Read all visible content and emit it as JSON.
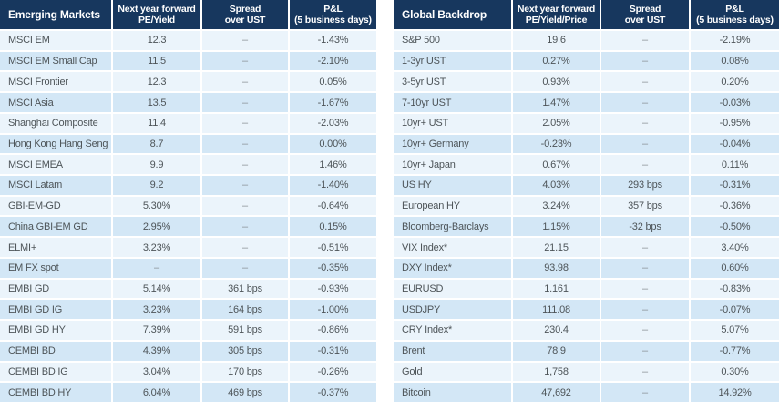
{
  "colors": {
    "header_bg": "#17375E",
    "header_text": "#FFFFFF",
    "row_light": "#EBF4FB",
    "row_dark": "#D3E7F6",
    "text": "#4D5458",
    "dash": "#8A9096"
  },
  "left_table": {
    "title": "Emerging Markets",
    "col_pe_yield": "Next year forward\nPE/Yield",
    "col_spread": "Spread\nover UST",
    "col_pnl": "P&L\n(5 business days)",
    "rows": [
      [
        "MSCI EM",
        "12.3",
        "–",
        "-1.43%"
      ],
      [
        "MSCI EM Small Cap",
        "11.5",
        "–",
        "-2.10%"
      ],
      [
        "MSCI Frontier",
        "12.3",
        "–",
        "0.05%"
      ],
      [
        "MSCI Asia",
        "13.5",
        "–",
        "-1.67%"
      ],
      [
        "Shanghai Composite",
        "11.4",
        "–",
        "-2.03%"
      ],
      [
        "Hong Kong Hang Seng",
        "8.7",
        "–",
        "0.00%"
      ],
      [
        "MSCI EMEA",
        "9.9",
        "–",
        "1.46%"
      ],
      [
        "MSCI Latam",
        "9.2",
        "–",
        "-1.40%"
      ],
      [
        "GBI-EM-GD",
        "5.30%",
        "–",
        "-0.64%"
      ],
      [
        "China GBI-EM GD",
        "2.95%",
        "–",
        "0.15%"
      ],
      [
        "ELMI+",
        "3.23%",
        "–",
        "-0.51%"
      ],
      [
        "EM FX spot",
        "–",
        "–",
        "-0.35%"
      ],
      [
        "EMBI GD",
        "5.14%",
        "361 bps",
        "-0.93%"
      ],
      [
        "EMBI GD IG",
        "3.23%",
        "164 bps",
        "-1.00%"
      ],
      [
        "EMBI GD HY",
        "7.39%",
        "591 bps",
        "-0.86%"
      ],
      [
        "CEMBI BD",
        "4.39%",
        "305 bps",
        "-0.31%"
      ],
      [
        "CEMBI BD IG",
        "3.04%",
        "170 bps",
        "-0.26%"
      ],
      [
        "CEMBI BD HY",
        "6.04%",
        "469 bps",
        "-0.37%"
      ]
    ]
  },
  "right_table": {
    "title": "Global Backdrop",
    "col_pe_yield": "Next year forward\nPE/Yield/Price",
    "col_spread": "Spread\nover UST",
    "col_pnl": "P&L\n(5 business days)",
    "rows": [
      [
        "S&P 500",
        "19.6",
        "–",
        "-2.19%"
      ],
      [
        "1-3yr UST",
        "0.27%",
        "–",
        "0.08%"
      ],
      [
        "3-5yr UST",
        "0.93%",
        "–",
        "0.20%"
      ],
      [
        "7-10yr UST",
        "1.47%",
        "–",
        "-0.03%"
      ],
      [
        "10yr+ UST",
        "2.05%",
        "–",
        "-0.95%"
      ],
      [
        "10yr+ Germany",
        "-0.23%",
        "–",
        "-0.04%"
      ],
      [
        "10yr+ Japan",
        "0.67%",
        "–",
        "0.11%"
      ],
      [
        "US HY",
        "4.03%",
        "293 bps",
        "-0.31%"
      ],
      [
        "European HY",
        "3.24%",
        "357 bps",
        "-0.36%"
      ],
      [
        "Bloomberg-Barclays",
        "1.15%",
        "-32 bps",
        "-0.50%"
      ],
      [
        "VIX Index*",
        "21.15",
        "–",
        "3.40%"
      ],
      [
        "DXY Index*",
        "93.98",
        "–",
        "0.60%"
      ],
      [
        "EURUSD",
        "1.161",
        "–",
        "-0.83%"
      ],
      [
        "USDJPY",
        "111.08",
        "–",
        "-0.07%"
      ],
      [
        "CRY Index*",
        "230.4",
        "–",
        "5.07%"
      ],
      [
        "Brent",
        "78.9",
        "–",
        "-0.77%"
      ],
      [
        "Gold",
        "1,758",
        "–",
        "0.30%"
      ],
      [
        "Bitcoin",
        "47,692",
        "–",
        "14.92%"
      ]
    ]
  }
}
